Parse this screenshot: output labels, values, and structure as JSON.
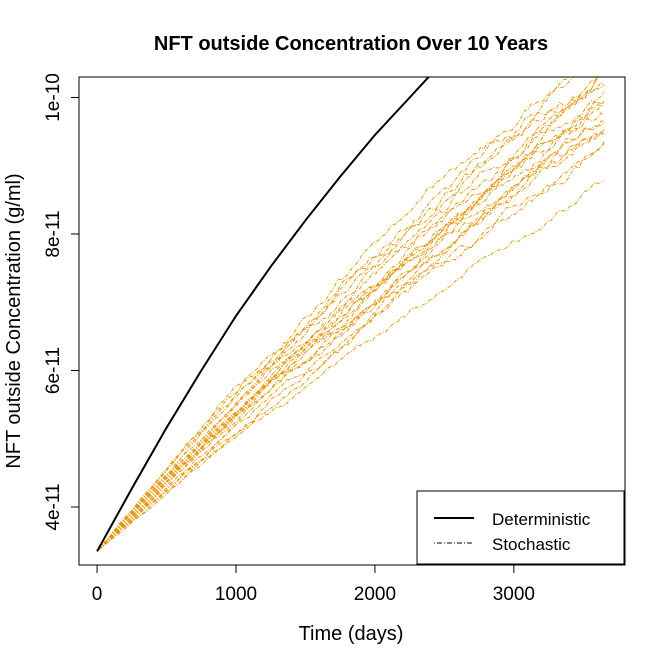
{
  "chart_data": {
    "type": "line",
    "title": "NFT outside Concentration Over 10 Years",
    "xlabel": "Time (days)",
    "ylabel": "NFT outside Concentration (g/ml)",
    "xlim": [
      -130,
      3800
    ],
    "ylim": [
      3.15e-11,
      1.03e-10
    ],
    "xticks": [
      {
        "value": 0,
        "label": "0"
      },
      {
        "value": 1000,
        "label": "1000"
      },
      {
        "value": 2000,
        "label": "2000"
      },
      {
        "value": 3000,
        "label": "3000"
      }
    ],
    "yticks": [
      {
        "value": 4e-11,
        "label": "4e-11"
      },
      {
        "value": 6e-11,
        "label": "6e-11"
      },
      {
        "value": 8e-11,
        "label": "8e-11"
      },
      {
        "value": 1e-10,
        "label": "1e-10"
      }
    ],
    "grid": false,
    "legend": {
      "position": "bottom-right",
      "entries": [
        {
          "label": "Deterministic",
          "style": "solid"
        },
        {
          "label": "Stochastic",
          "style": "dotdash"
        }
      ]
    },
    "colors": {
      "deterministic": "#000000",
      "stochastic": "#E69A14"
    },
    "series": [
      {
        "name": "Deterministic",
        "x": [
          0,
          250,
          500,
          750,
          1000,
          1250,
          1500,
          1750,
          2000,
          2250,
          2500,
          2550
        ],
        "y": [
          3.35e-11,
          4.27e-11,
          5.16e-11,
          6e-11,
          6.8e-11,
          7.52e-11,
          8.2e-11,
          8.84e-11,
          9.45e-11,
          1e-10,
          1.055e-10,
          1.065e-10
        ]
      },
      {
        "name": "Stochastic",
        "start": [
          0,
          3.35e-11
        ],
        "x_end": 3650,
        "runs": [
          {
            "end": 8.78e-11,
            "curv": 0.1,
            "wob": 2.5e-12,
            "seed": 1
          },
          {
            "end": 9.25e-11,
            "curv": 0.12,
            "wob": 2.8e-12,
            "seed": 2
          },
          {
            "end": 9.35e-11,
            "curv": 0.15,
            "wob": 3e-12,
            "seed": 3
          },
          {
            "end": 9.45e-11,
            "curv": 0.12,
            "wob": 3e-12,
            "seed": 4
          },
          {
            "end": 9.55e-11,
            "curv": 0.16,
            "wob": 3.2e-12,
            "seed": 5
          },
          {
            "end": 9.62e-11,
            "curv": 0.14,
            "wob": 3e-12,
            "seed": 6
          },
          {
            "end": 9.7e-11,
            "curv": 0.18,
            "wob": 3.2e-12,
            "seed": 7
          },
          {
            "end": 9.78e-11,
            "curv": 0.15,
            "wob": 3e-12,
            "seed": 8
          },
          {
            "end": 9.85e-11,
            "curv": 0.19,
            "wob": 3.4e-12,
            "seed": 9
          },
          {
            "end": 9.92e-11,
            "curv": 0.16,
            "wob": 3e-12,
            "seed": 10
          },
          {
            "end": 1e-10,
            "curv": 0.2,
            "wob": 3.4e-12,
            "seed": 11
          },
          {
            "end": 1.008e-10,
            "curv": 0.17,
            "wob": 3.2e-12,
            "seed": 12
          },
          {
            "end": 1.015e-10,
            "curv": 0.21,
            "wob": 3.4e-12,
            "seed": 13
          },
          {
            "end": 1.022e-10,
            "curv": 0.19,
            "wob": 3.3e-12,
            "seed": 14
          },
          {
            "end": 1.028e-10,
            "curv": 0.22,
            "wob": 3.5e-12,
            "seed": 15
          },
          {
            "end": 1.035e-10,
            "curv": 0.2,
            "wob": 3.3e-12,
            "seed": 16
          },
          {
            "end": 1.04e-10,
            "curv": 0.23,
            "wob": 3.6e-12,
            "seed": 17
          },
          {
            "end": 1.05e-10,
            "curv": 0.24,
            "wob": 3.4e-12,
            "seed": 18
          },
          {
            "end": 1.06e-10,
            "curv": 0.25,
            "wob": 3.6e-12,
            "seed": 19
          },
          {
            "end": 9.5e-11,
            "curv": 0.22,
            "wob": 3e-12,
            "seed": 20
          }
        ]
      }
    ]
  }
}
